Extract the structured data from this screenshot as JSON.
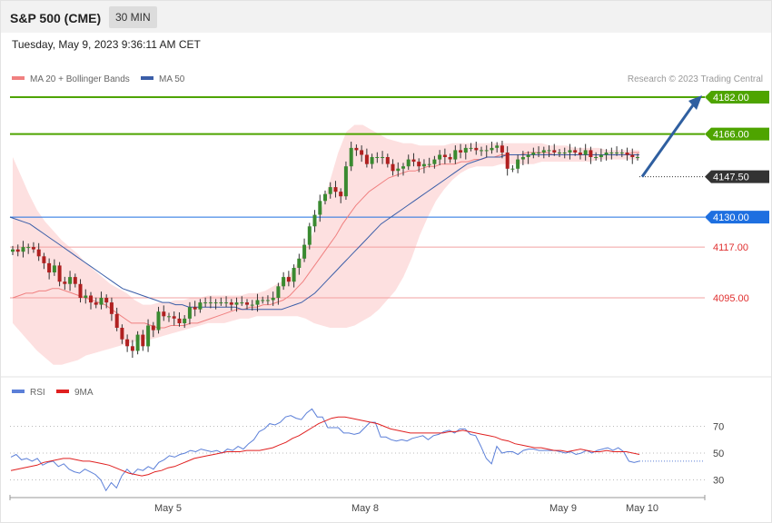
{
  "header": {
    "symbol": "S&P 500 (CME)",
    "timeframe": "30 MIN"
  },
  "datetime": "Tuesday, May 9, 2023 9:36:11 AM CET",
  "credit": "Research © 2023 Trading Central",
  "colors": {
    "target": "#4ea400",
    "pivot": "#1e6fe0",
    "support": "#e03030",
    "last": "#333333",
    "arrow": "#2f5fa0",
    "ma20": "#f08080",
    "ma50": "#3b5ea8",
    "rsi": "#5b7fd8",
    "rsi_ma": "#e02020"
  },
  "chart_data": [
    {
      "type": "candlestick",
      "legend": [
        "MA 20 + Bollinger Bands",
        "MA 50"
      ],
      "ylim": [
        4060,
        4190
      ],
      "x_ticks": [
        "May 5",
        "May 8",
        "May 9",
        "May 10"
      ],
      "levels": [
        {
          "value": 4182.0,
          "label": "4182.00",
          "kind": "target"
        },
        {
          "value": 4166.0,
          "label": "4166.00",
          "kind": "target"
        },
        {
          "value": 4147.5,
          "label": "4147.50",
          "kind": "last"
        },
        {
          "value": 4130.0,
          "label": "4130.00",
          "kind": "pivot"
        },
        {
          "value": 4117.0,
          "label": "4117.00",
          "kind": "support"
        },
        {
          "value": 4095.0,
          "label": "4095.00",
          "kind": "support"
        }
      ],
      "close": [
        4116,
        4115,
        4117,
        4117,
        4116,
        4113,
        4110,
        4106,
        4109,
        4102,
        4101,
        4104,
        4101,
        4095,
        4096,
        4093,
        4092,
        4095,
        4093,
        4088,
        4082,
        4077,
        4074,
        4072,
        4079,
        4074,
        4083,
        4081,
        4089,
        4087,
        4087,
        4086,
        4084,
        4086,
        4091,
        4090,
        4093,
        4093,
        4093,
        4093,
        4093,
        4093,
        4092,
        4093,
        4093,
        4092,
        4092,
        4094,
        4094,
        4094,
        4095,
        4100,
        4104,
        4102,
        4108,
        4112,
        4118,
        4126,
        4131,
        4137,
        4140,
        4143,
        4141,
        4139,
        4152,
        4160,
        4159,
        4157,
        4153,
        4156,
        4156,
        4156,
        4153,
        4150,
        4151,
        4152,
        4155,
        4154,
        4152,
        4153,
        4153,
        4155,
        4157,
        4156,
        4155,
        4159,
        4158,
        4160,
        4160,
        4159,
        4159,
        4159,
        4160,
        4161,
        4158,
        4151,
        4151,
        4155,
        4156,
        4157,
        4158,
        4158,
        4159,
        4159,
        4158,
        4158,
        4158,
        4159,
        4158,
        4157,
        4159,
        4156,
        4156,
        4157,
        4158,
        4158,
        4158,
        4158,
        4157,
        4156,
        4156
      ],
      "ma20": [
        4095,
        4096,
        4097,
        4097,
        4098,
        4098,
        4099,
        4099,
        4098,
        4097,
        4096,
        4095,
        4094,
        4093,
        4092,
        4090,
        4088,
        4086,
        4084,
        4084,
        4084,
        4083,
        4082,
        4082,
        4083,
        4083,
        4083,
        4084,
        4084,
        4085,
        4086,
        4087,
        4088,
        4089,
        4090,
        4090,
        4091,
        4091,
        4092,
        4092,
        4093,
        4094,
        4096,
        4099,
        4102,
        4106,
        4110,
        4114,
        4118,
        4122,
        4127,
        4131,
        4135,
        4138,
        4141,
        4143,
        4145,
        4147,
        4148,
        4149,
        4150,
        4150,
        4151,
        4152,
        4152,
        4153,
        4153,
        4153,
        4154,
        4154,
        4155,
        4155,
        4156,
        4156,
        4157,
        4157,
        4157,
        4157,
        4158,
        4158,
        4158,
        4158,
        4157,
        4157,
        4157,
        4157,
        4157,
        4157,
        4157,
        4157,
        4157,
        4157,
        4157,
        4157,
        4158,
        4158
      ],
      "ma50": [
        4130,
        4129,
        4128,
        4127,
        4125,
        4123,
        4121,
        4119,
        4117,
        4115,
        4113,
        4111,
        4109,
        4107,
        4105,
        4103,
        4101,
        4099,
        4098,
        4097,
        4096,
        4095,
        4094,
        4093,
        4093,
        4092,
        4092,
        4091,
        4091,
        4091,
        4091,
        4091,
        4091,
        4091,
        4091,
        4090,
        4090,
        4090,
        4090,
        4090,
        4090,
        4090,
        4091,
        4092,
        4093,
        4095,
        4097,
        4100,
        4103,
        4106,
        4109,
        4112,
        4115,
        4118,
        4121,
        4124,
        4127,
        4129,
        4131,
        4133,
        4135,
        4137,
        4139,
        4141,
        4143,
        4145,
        4147,
        4149,
        4151,
        4153,
        4154,
        4155,
        4156,
        4156,
        4156,
        4157,
        4157,
        4157,
        4157,
        4157,
        4157,
        4157,
        4157,
        4157,
        4157,
        4157,
        4157,
        4157,
        4157,
        4157,
        4157,
        4157,
        4157,
        4157,
        4157,
        4157
      ],
      "bb_upper": [
        4156,
        4148,
        4140,
        4133,
        4128,
        4124,
        4120,
        4117,
        4114,
        4110,
        4107,
        4104,
        4101,
        4099,
        4097,
        4094,
        4092,
        4092,
        4093,
        4093,
        4094,
        4094,
        4095,
        4095,
        4096,
        4096,
        4096,
        4096,
        4096,
        4097,
        4097,
        4098,
        4100,
        4102,
        4105,
        4110,
        4116,
        4124,
        4134,
        4146,
        4158,
        4167,
        4170,
        4170,
        4168,
        4166,
        4164,
        4163,
        4162,
        4162,
        4161,
        4161,
        4161,
        4161,
        4162,
        4162,
        4162,
        4162,
        4162,
        4162,
        4162,
        4162,
        4162,
        4162,
        4162,
        4162,
        4161,
        4161,
        4161,
        4160,
        4160,
        4160,
        4160,
        4159,
        4159,
        4159,
        4159,
        4159
      ],
      "bb_lower": [
        4084,
        4080,
        4076,
        4072,
        4069,
        4066,
        4066,
        4067,
        4068,
        4070,
        4071,
        4072,
        4073,
        4074,
        4075,
        4076,
        4077,
        4077,
        4078,
        4079,
        4080,
        4081,
        4082,
        4083,
        4084,
        4084,
        4084,
        4085,
        4086,
        4086,
        4087,
        4087,
        4087,
        4087,
        4087,
        4087,
        4086,
        4084,
        4083,
        4082,
        4082,
        4082,
        4083,
        4085,
        4087,
        4090,
        4094,
        4098,
        4104,
        4112,
        4122,
        4130,
        4137,
        4142,
        4146,
        4149,
        4151,
        4152,
        4152,
        4152,
        4153,
        4153,
        4153,
        4153,
        4153,
        4154,
        4154,
        4154,
        4154,
        4154,
        4154,
        4154,
        4155,
        4155,
        4155,
        4155,
        4155,
        4155
      ],
      "forecast_arrow": {
        "from": 4147.5,
        "to": 4182.0
      }
    },
    {
      "type": "line",
      "name": "RSI",
      "legend": [
        "RSI",
        "9MA"
      ],
      "ylim": [
        15,
        85
      ],
      "y_ticks": [
        70,
        50,
        30
      ],
      "series": [
        {
          "name": "RSI",
          "values": [
            47,
            49,
            45,
            46,
            44,
            46,
            41,
            43,
            44,
            40,
            42,
            38,
            36,
            35,
            38,
            36,
            34,
            30,
            22,
            28,
            24,
            33,
            38,
            34,
            38,
            37,
            40,
            38,
            43,
            45,
            48,
            47,
            49,
            50,
            52,
            51,
            53,
            52,
            51,
            52,
            50,
            53,
            52,
            55,
            53,
            57,
            60,
            66,
            68,
            72,
            71,
            73,
            77,
            78,
            76,
            75,
            80,
            83,
            77,
            77,
            69,
            69,
            69,
            65,
            65,
            64,
            65,
            69,
            73,
            73,
            62,
            62,
            60,
            59,
            60,
            59,
            61,
            62,
            63,
            60,
            63,
            64,
            66,
            67,
            65,
            68,
            68,
            64,
            63,
            55,
            46,
            42,
            55,
            50,
            51,
            51,
            49,
            52,
            53,
            53,
            52,
            52,
            52,
            52,
            51,
            50,
            51,
            49,
            50,
            52,
            50,
            52,
            53,
            54,
            52,
            54,
            51,
            44,
            43,
            44
          ]
        },
        {
          "name": "9MA",
          "values": [
            37,
            38,
            39,
            40,
            41,
            43,
            44,
            45,
            46,
            46,
            45,
            44,
            44,
            43,
            42,
            41,
            39,
            37,
            35,
            34,
            33,
            34,
            36,
            37,
            39,
            40,
            42,
            44,
            46,
            47,
            48,
            49,
            50,
            51,
            51,
            51,
            52,
            52,
            52,
            53,
            54,
            56,
            58,
            61,
            63,
            66,
            69,
            72,
            74,
            76,
            77,
            77,
            76,
            75,
            74,
            73,
            72,
            70,
            68,
            67,
            66,
            65,
            65,
            65,
            65,
            65,
            65,
            66,
            66,
            67,
            66,
            65,
            64,
            63,
            62,
            60,
            59,
            57,
            56,
            55,
            54,
            54,
            53,
            52,
            52,
            51,
            52,
            53,
            52,
            51,
            51,
            52,
            51,
            51,
            51,
            50,
            49
          ]
        }
      ]
    }
  ]
}
